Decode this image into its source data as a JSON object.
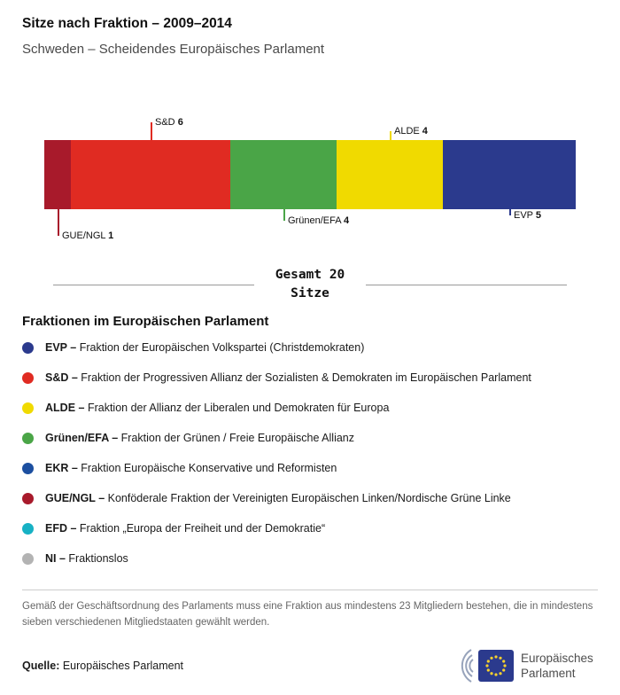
{
  "header": {
    "title": "Sitze nach Fraktion – 2009–2014",
    "subtitle": "Schweden – Scheidendes Europäisches Parlament"
  },
  "chart_data": {
    "type": "bar",
    "variant": "stacked-horizontal",
    "title": "Sitze nach Fraktion – 2009–2014",
    "subtitle": "Schweden – Scheidendes Europäisches Parlament",
    "total_seats": 20,
    "total_label_line1": "Gesamt 20",
    "total_label_line2": "Sitze",
    "segments": [
      {
        "name": "GUE/NGL",
        "seats": 1,
        "color": "#a81a2b",
        "label_pos": "below",
        "line_len": 30
      },
      {
        "name": "S&D",
        "seats": 6,
        "color": "#e02b22",
        "label_pos": "above",
        "line_len": 20
      },
      {
        "name": "Grünen/EFA",
        "seats": 4,
        "color": "#4aa547",
        "label_pos": "below",
        "line_len": 13
      },
      {
        "name": "ALDE",
        "seats": 4,
        "color": "#f0da00",
        "label_pos": "above",
        "line_len": 10
      },
      {
        "name": "EVP",
        "seats": 5,
        "color": "#2b3a8d",
        "label_pos": "below",
        "line_len": 7
      }
    ]
  },
  "legend": {
    "title": "Fraktionen im Europäischen Parlament",
    "items": [
      {
        "abbr": "EVP –",
        "desc": "Fraktion der Europäischen Volkspartei (Christdemokraten)",
        "color": "#2b3a8d"
      },
      {
        "abbr": "S&D –",
        "desc": "Fraktion der Progressiven Allianz der Sozialisten & Demokraten im Europäischen Parlament",
        "color": "#e02b22"
      },
      {
        "abbr": "ALDE –",
        "desc": "Fraktion der Allianz der Liberalen und Demokraten für Europa",
        "color": "#f0da00"
      },
      {
        "abbr": "Grünen/EFA –",
        "desc": "Fraktion der Grünen / Freie Europäische Allianz",
        "color": "#4aa547"
      },
      {
        "abbr": "EKR –",
        "desc": "Fraktion Europäische Konservative und Reformisten",
        "color": "#1c4fa0"
      },
      {
        "abbr": "GUE/NGL –",
        "desc": "Konföderale Fraktion der Vereinigten Europäischen Linken/Nordische Grüne Linke",
        "color": "#a81a2b"
      },
      {
        "abbr": "EFD –",
        "desc": "Fraktion „Europa der Freiheit und der Demokratie“",
        "color": "#17b1c4"
      },
      {
        "abbr": "NI –",
        "desc": "Fraktionslos",
        "color": "#b3b3b3"
      }
    ]
  },
  "footnote": "Gemäß der Geschäftsordnung des Parlaments muss eine Fraktion aus mindestens 23 Mitgliedern bestehen, die in mindestens sieben verschiedenen Mitgliedstaaten gewählt werden.",
  "source": {
    "label": "Quelle:",
    "value": " Europäisches Parlament"
  },
  "logo": {
    "line1": "Europäisches",
    "line2": "Parlament"
  }
}
